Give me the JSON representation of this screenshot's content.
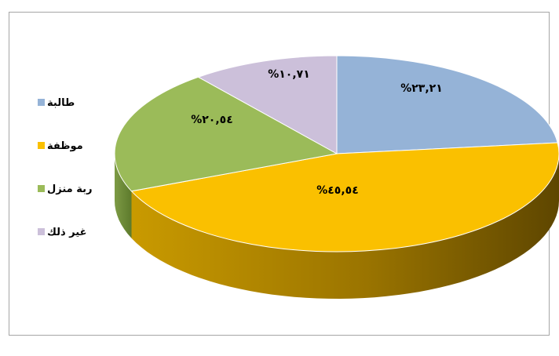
{
  "chart_data": {
    "type": "pie",
    "title": "",
    "categories": [
      "طالبة",
      "موظفة",
      "ربة منزل",
      "غير ذلك"
    ],
    "values": [
      23.21,
      45.54,
      20.54,
      10.71
    ],
    "data_labels": [
      "%٢٣,٢١",
      "%٤٥,٥٤",
      "%٢٠,٥٤",
      "%١٠,٧١"
    ],
    "colors": [
      "#95b3d7",
      "#fac000",
      "#9bbb59",
      "#ccc0da"
    ],
    "side_colors": [
      "#5f7fa3",
      "#a67c00",
      "#6a8a34",
      "#9688a8"
    ],
    "legend_position": "left",
    "style": "3d-pie"
  }
}
